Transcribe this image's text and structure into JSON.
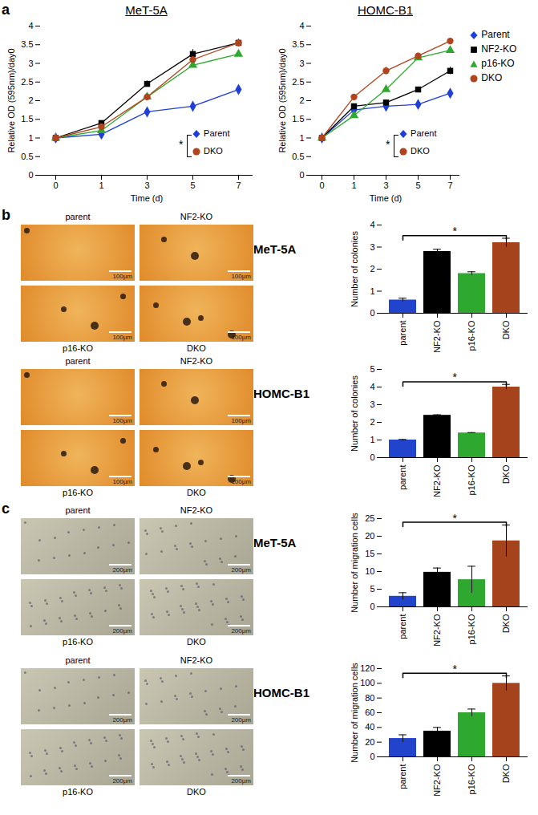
{
  "chart_data": [
    {
      "panel": "a",
      "type": "line",
      "title": "MeT-5A",
      "x_label": "Time (d)",
      "y_label": "Relative OD (595nm)/day0",
      "categories": [
        "0",
        "1",
        "3",
        "5",
        "7"
      ],
      "ylim": [
        0,
        4
      ],
      "yticks": [
        0,
        0.5,
        1,
        1.5,
        2,
        2.5,
        3,
        3.5,
        4
      ],
      "series": [
        {
          "name": "Parent",
          "color": "#1f3fd6",
          "marker": "diamond",
          "values": [
            1,
            1.1,
            1.7,
            1.85,
            2.3
          ],
          "errors": [
            0,
            0.03,
            0.05,
            0.05,
            0.05
          ]
        },
        {
          "name": "NF2-KO",
          "color": "#000000",
          "marker": "square",
          "values": [
            1,
            1.4,
            2.45,
            3.25,
            3.55
          ],
          "errors": [
            0,
            0.05,
            0.08,
            0.12,
            0.1
          ]
        },
        {
          "name": "p16-KO",
          "color": "#2ea82e",
          "marker": "triangle",
          "values": [
            1,
            1.2,
            2.1,
            2.95,
            3.25
          ],
          "errors": [
            0,
            0.03,
            0.05,
            0.05,
            0.05
          ]
        },
        {
          "name": "DKO",
          "color": "#b0441c",
          "marker": "circle",
          "values": [
            1,
            1.3,
            2.1,
            3.1,
            3.55
          ],
          "errors": [
            0,
            0.05,
            0.08,
            0.08,
            0.1
          ]
        }
      ],
      "annotation": {
        "text": "*",
        "between": [
          "Parent",
          "DKO"
        ]
      }
    },
    {
      "type": "line",
      "title": "HOMC-B1",
      "x_label": "Time (d)",
      "y_label": "Relative OD (595nm)/day0",
      "categories": [
        "0",
        "1",
        "3",
        "5",
        "7"
      ],
      "ylim": [
        0,
        4
      ],
      "yticks": [
        0,
        0.5,
        1,
        1.5,
        2,
        2.5,
        3,
        3.5,
        4
      ],
      "legend": "right",
      "series": [
        {
          "name": "Parent",
          "color": "#1f3fd6",
          "marker": "diamond",
          "values": [
            1,
            1.75,
            1.85,
            1.9,
            2.2
          ],
          "errors": [
            0,
            0.05,
            0.05,
            0.05,
            0.08
          ]
        },
        {
          "name": "NF2-KO",
          "color": "#000000",
          "marker": "square",
          "values": [
            1,
            1.85,
            1.95,
            2.3,
            2.8
          ],
          "errors": [
            0,
            0.05,
            0.05,
            0.05,
            0.1
          ]
        },
        {
          "name": "p16-KO",
          "color": "#2ea82e",
          "marker": "triangle",
          "values": [
            1,
            1.6,
            2.3,
            3.15,
            3.35
          ],
          "errors": [
            0,
            0.05,
            0.05,
            0.05,
            0.05
          ]
        },
        {
          "name": "DKO",
          "color": "#b0441c",
          "marker": "circle",
          "values": [
            1,
            2.1,
            2.8,
            3.2,
            3.6
          ],
          "errors": [
            0,
            0.05,
            0.1,
            0.05,
            0.05
          ]
        }
      ],
      "annotation": {
        "text": "*",
        "between": [
          "Parent",
          "DKO"
        ]
      }
    },
    {
      "panel": "b",
      "type": "bar",
      "title": "MeT-5A",
      "y_label": "Number of colonies",
      "categories": [
        "parent",
        "NF2-KO",
        "p16-KO",
        "DKO"
      ],
      "values": [
        0.6,
        2.8,
        1.8,
        3.2
      ],
      "errors": [
        0.08,
        0.1,
        0.08,
        0.2
      ],
      "colors": [
        "#2244cc",
        "#000000",
        "#2ea82e",
        "#a5431c"
      ],
      "ylim": [
        0,
        4
      ],
      "yticks": [
        0,
        1,
        2,
        3,
        4
      ],
      "annotation": {
        "text": "*",
        "between": [
          "parent",
          "DKO"
        ]
      },
      "micrograph": {
        "labels": [
          "parent",
          "NF2-KO",
          "p16-KO",
          "DKO"
        ],
        "scale_bar": "100µm"
      }
    },
    {
      "type": "bar",
      "title": "HOMC-B1",
      "y_label": "Number of colonies",
      "categories": [
        "parent",
        "NF2-KO",
        "p16-KO",
        "DKO"
      ],
      "values": [
        1.0,
        2.4,
        1.4,
        4.0
      ],
      "errors": [
        0.03,
        0.03,
        0.02,
        0.15
      ],
      "colors": [
        "#2244cc",
        "#000000",
        "#2ea82e",
        "#a5431c"
      ],
      "ylim": [
        0,
        5
      ],
      "yticks": [
        0,
        1,
        2,
        3,
        4,
        5
      ],
      "annotation": {
        "text": "*",
        "between": [
          "parent",
          "DKO"
        ]
      },
      "micrograph": {
        "labels": [
          "parent",
          "NF2-KO",
          "p16-KO",
          "DKO"
        ],
        "scale_bar": "100µm"
      }
    },
    {
      "panel": "c",
      "type": "bar",
      "title": "MeT-5A",
      "y_label": "Number of migration cells",
      "categories": [
        "parent",
        "NF2-KO",
        "p16-KO",
        "DKO"
      ],
      "values": [
        3,
        9.8,
        7.7,
        18.7
      ],
      "errors": [
        1,
        1.2,
        3.8,
        4.5
      ],
      "colors": [
        "#2244cc",
        "#000000",
        "#2ea82e",
        "#a5431c"
      ],
      "ylim": [
        0,
        25
      ],
      "yticks": [
        0,
        5,
        10,
        15,
        20,
        25
      ],
      "annotation": {
        "text": "*",
        "between": [
          "parent",
          "DKO"
        ]
      },
      "micrograph": {
        "labels": [
          "parent",
          "NF2-KO",
          "p16-KO",
          "DKO"
        ],
        "scale_bar": "200µm"
      }
    },
    {
      "type": "bar",
      "title": "HOMC-B1",
      "y_label": "Number of migration cells",
      "categories": [
        "parent",
        "NF2-KO",
        "p16-KO",
        "DKO"
      ],
      "values": [
        25,
        35,
        60,
        100
      ],
      "errors": [
        5,
        5,
        5,
        10
      ],
      "colors": [
        "#2244cc",
        "#000000",
        "#2ea82e",
        "#a5431c"
      ],
      "ylim": [
        0,
        120
      ],
      "yticks": [
        0,
        20,
        40,
        60,
        80,
        100,
        120
      ],
      "annotation": {
        "text": "*",
        "between": [
          "parent",
          "DKO"
        ]
      },
      "micrograph": {
        "labels": [
          "parent",
          "NF2-KO",
          "p16-KO",
          "DKO"
        ],
        "scale_bar": "200µm"
      }
    }
  ]
}
